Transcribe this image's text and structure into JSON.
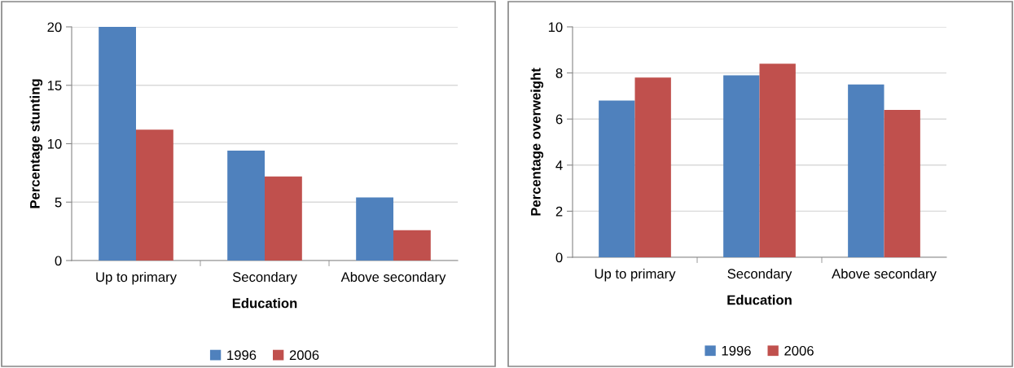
{
  "chart_data": [
    {
      "type": "bar",
      "xlabel": "Education",
      "ylabel": "Percentage stunting",
      "categories": [
        "Up to primary",
        "Secondary",
        "Above secondary"
      ],
      "series": [
        {
          "name": "1996",
          "color": "#4f81bd",
          "values": [
            20,
            9.4,
            5.4
          ]
        },
        {
          "name": "2006",
          "color": "#c0504d",
          "values": [
            11.2,
            7.2,
            2.6
          ]
        }
      ],
      "ylim": [
        0,
        20
      ],
      "yticks": [
        0,
        5,
        10,
        15,
        20
      ],
      "grid": "y",
      "legend": "bottom"
    },
    {
      "type": "bar",
      "xlabel": "Education",
      "ylabel": "Percentage overweight",
      "categories": [
        "Up to primary",
        "Secondary",
        "Above secondary"
      ],
      "series": [
        {
          "name": "1996",
          "color": "#4f81bd",
          "values": [
            6.8,
            7.9,
            7.5
          ]
        },
        {
          "name": "2006",
          "color": "#c0504d",
          "values": [
            7.8,
            8.4,
            6.4
          ]
        }
      ],
      "ylim": [
        0,
        10
      ],
      "yticks": [
        0,
        2,
        4,
        6,
        8,
        10
      ],
      "grid": "y",
      "legend": "bottom"
    }
  ]
}
